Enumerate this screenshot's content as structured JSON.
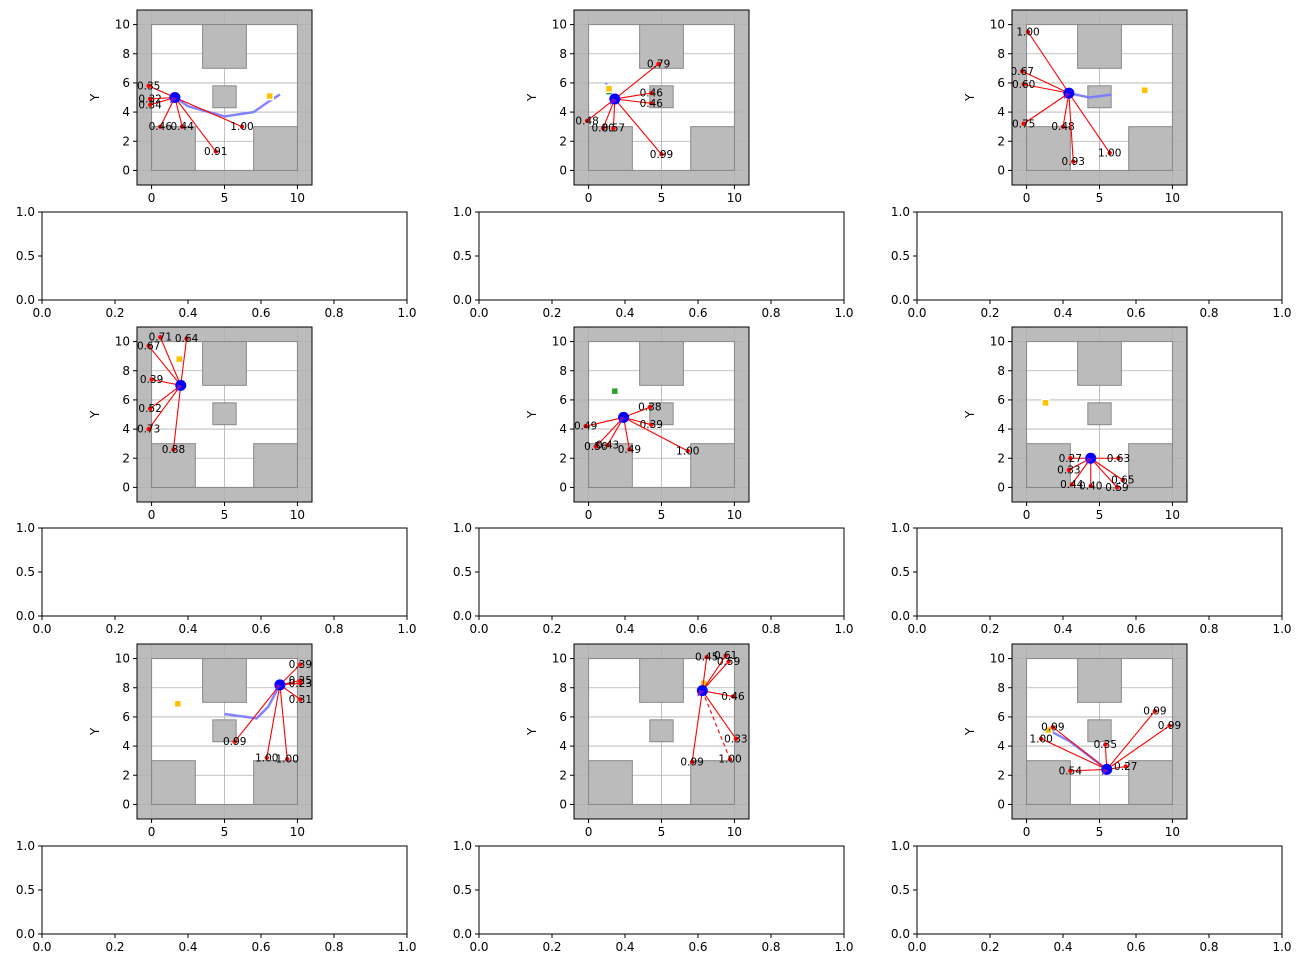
{
  "chart_data": [
    {
      "type": "scatter",
      "panel": "map",
      "ylabel": "Y",
      "xlim": [
        -1,
        11
      ],
      "ylim": [
        -1,
        11
      ],
      "xticks": [
        "0",
        "5",
        "10"
      ],
      "yticks": [
        "0",
        "2",
        "4",
        "6",
        "8",
        "10"
      ],
      "robot": [
        1.6,
        5.0
      ],
      "goal": [
        8.1,
        5.1
      ],
      "start": null,
      "path": [
        [
          8.8,
          5.2
        ],
        [
          8.0,
          4.7
        ],
        [
          7.0,
          4.0
        ],
        [
          5.0,
          3.7
        ],
        [
          2.5,
          4.4
        ],
        [
          1.6,
          5.0
        ]
      ],
      "rays": [
        [
          -0.2,
          5.8,
          "0.35"
        ],
        [
          -0.1,
          4.9,
          "0.32"
        ],
        [
          -0.1,
          4.5,
          "0.34"
        ],
        [
          0.6,
          3.0,
          "0.46"
        ],
        [
          2.1,
          3.0,
          "0.44"
        ],
        [
          4.4,
          1.3,
          "0.91"
        ],
        [
          6.2,
          3.0,
          "1.00"
        ]
      ],
      "dashed": []
    },
    {
      "type": "scatter",
      "panel": "map",
      "ylabel": "Y",
      "xlim": [
        -1,
        11
      ],
      "ylim": [
        -1,
        11
      ],
      "xticks": [
        "0",
        "5",
        "10"
      ],
      "yticks": [
        "0",
        "2",
        "4",
        "6",
        "8",
        "10"
      ],
      "robot": [
        1.8,
        4.9
      ],
      "goal": [
        1.4,
        5.6
      ],
      "start": [
        1.4,
        5.4
      ],
      "path": [
        [
          1.8,
          4.9
        ],
        [
          1.3,
          5.4
        ],
        [
          1.2,
          6.0
        ]
      ],
      "rays": [
        [
          -0.1,
          3.4,
          "0.48"
        ],
        [
          1.0,
          2.9,
          "0.80"
        ],
        [
          1.7,
          2.9,
          "0.57"
        ],
        [
          4.3,
          4.6,
          "0.46"
        ],
        [
          4.3,
          5.3,
          "0.46"
        ],
        [
          5.0,
          1.1,
          "0.99"
        ],
        [
          4.8,
          7.3,
          "0.79"
        ]
      ],
      "dashed": []
    },
    {
      "type": "scatter",
      "panel": "map",
      "ylabel": "Y",
      "xlim": [
        -1,
        11
      ],
      "ylim": [
        -1,
        11
      ],
      "xticks": [
        "0",
        "5",
        "10"
      ],
      "yticks": [
        "0",
        "2",
        "4",
        "6",
        "8",
        "10"
      ],
      "robot": [
        2.9,
        5.3
      ],
      "goal": [
        8.1,
        5.5
      ],
      "start": null,
      "path": [
        [
          2.9,
          5.3
        ],
        [
          4.3,
          5.0
        ],
        [
          5.8,
          5.2
        ]
      ],
      "rays": [
        [
          0.1,
          9.5,
          "1.00"
        ],
        [
          -0.3,
          6.8,
          "0.67"
        ],
        [
          -0.2,
          5.9,
          "0.60"
        ],
        [
          -0.2,
          3.2,
          "0.75"
        ],
        [
          2.5,
          3.0,
          "0.48"
        ],
        [
          3.2,
          0.6,
          "0.93"
        ],
        [
          5.7,
          1.2,
          "1.00"
        ]
      ],
      "dashed": []
    },
    {
      "type": "scatter",
      "panel": "map",
      "ylabel": "Y",
      "xlim": [
        -1,
        11
      ],
      "ylim": [
        -1,
        11
      ],
      "xticks": [
        "0",
        "5",
        "10"
      ],
      "yticks": [
        "0",
        "2",
        "4",
        "6",
        "8",
        "10"
      ],
      "robot": [
        2.0,
        7.0
      ],
      "goal": [
        1.9,
        8.8
      ],
      "start": null,
      "path": [],
      "rays": [
        [
          -0.2,
          9.7,
          "0.67"
        ],
        [
          0.6,
          10.3,
          "0.71"
        ],
        [
          2.4,
          10.2,
          "0.64"
        ],
        [
          0.0,
          7.4,
          "0.39"
        ],
        [
          -0.1,
          5.4,
          "0.52"
        ],
        [
          -0.2,
          4.0,
          "0.73"
        ],
        [
          1.5,
          2.6,
          "0.88"
        ]
      ],
      "dashed": []
    },
    {
      "type": "scatter",
      "panel": "map",
      "ylabel": "Y",
      "xlim": [
        -1,
        11
      ],
      "ylim": [
        -1,
        11
      ],
      "xticks": [
        "0",
        "5",
        "10"
      ],
      "yticks": [
        "0",
        "2",
        "4",
        "6",
        "8",
        "10"
      ],
      "robot": [
        2.4,
        4.8
      ],
      "goal": null,
      "start": [
        1.8,
        6.6
      ],
      "path": [],
      "rays": [
        [
          -0.2,
          4.2,
          "0.49"
        ],
        [
          0.5,
          2.8,
          "0.56"
        ],
        [
          1.3,
          2.9,
          "0.43"
        ],
        [
          2.8,
          2.6,
          "0.49"
        ],
        [
          4.3,
          4.3,
          "0.39"
        ],
        [
          4.2,
          5.5,
          "0.38"
        ],
        [
          6.8,
          2.5,
          "1.00"
        ]
      ],
      "dashed": []
    },
    {
      "type": "scatter",
      "panel": "map",
      "ylabel": "Y",
      "xlim": [
        -1,
        11
      ],
      "ylim": [
        -1,
        11
      ],
      "xticks": [
        "0",
        "5",
        "10"
      ],
      "yticks": [
        "0",
        "2",
        "4",
        "6",
        "8",
        "10"
      ],
      "robot": [
        4.4,
        2.0
      ],
      "goal": [
        1.3,
        5.8
      ],
      "start": null,
      "path": [],
      "rays": [
        [
          3.0,
          2.0,
          "0.27"
        ],
        [
          2.9,
          1.2,
          "0.33"
        ],
        [
          3.1,
          0.2,
          "0.44"
        ],
        [
          4.4,
          0.1,
          "0.40"
        ],
        [
          6.2,
          0.0,
          "0.59"
        ],
        [
          6.6,
          0.5,
          "0.65"
        ],
        [
          6.3,
          2.0,
          "0.63"
        ]
      ],
      "dashed": []
    },
    {
      "type": "scatter",
      "panel": "map",
      "ylabel": "Y",
      "xlim": [
        -1,
        11
      ],
      "ylim": [
        -1,
        11
      ],
      "xticks": [
        "0",
        "5",
        "10"
      ],
      "yticks": [
        "0",
        "2",
        "4",
        "6",
        "8",
        "10"
      ],
      "robot": [
        8.8,
        8.2
      ],
      "goal": [
        1.8,
        6.9
      ],
      "start": null,
      "path": [
        [
          5.0,
          6.2
        ],
        [
          7.2,
          5.9
        ],
        [
          8.0,
          6.7
        ],
        [
          8.8,
          8.2
        ]
      ],
      "rays": [
        [
          10.2,
          9.6,
          "0.39"
        ],
        [
          10.2,
          8.5,
          "0.25"
        ],
        [
          10.2,
          8.3,
          "0.23"
        ],
        [
          10.2,
          7.2,
          "0.31"
        ],
        [
          5.7,
          4.3,
          "0.99"
        ],
        [
          7.9,
          3.2,
          "1.00"
        ],
        [
          9.3,
          3.1,
          "1.00"
        ]
      ],
      "dashed": []
    },
    {
      "type": "scatter",
      "panel": "map",
      "ylabel": "Y",
      "xlim": [
        -1,
        11
      ],
      "ylim": [
        -1,
        11
      ],
      "xticks": [
        "0",
        "5",
        "10"
      ],
      "yticks": [
        "0",
        "2",
        "4",
        "6",
        "8",
        "10"
      ],
      "robot": [
        7.8,
        7.8
      ],
      "goal": [
        7.9,
        8.3
      ],
      "start": null,
      "path": [],
      "rays": [
        [
          8.1,
          10.1,
          "0.45"
        ],
        [
          9.4,
          10.2,
          "0.61"
        ],
        [
          9.6,
          9.8,
          "0.59"
        ],
        [
          9.9,
          7.4,
          "0.46"
        ],
        [
          10.1,
          4.5,
          "0.33"
        ],
        [
          7.1,
          2.9,
          "0.99"
        ]
      ],
      "dashed": [
        [
          9.7,
          3.1,
          "1.00"
        ]
      ]
    },
    {
      "type": "scatter",
      "panel": "map",
      "ylabel": "Y",
      "xlim": [
        -1,
        11
      ],
      "ylim": [
        -1,
        11
      ],
      "xticks": [
        "0",
        "5",
        "10"
      ],
      "yticks": [
        "0",
        "2",
        "4",
        "6",
        "8",
        "10"
      ],
      "robot": [
        5.5,
        2.4
      ],
      "goal": [
        1.5,
        5.1
      ],
      "start": null,
      "path": [
        [
          5.5,
          2.4
        ],
        [
          3.0,
          4.3
        ],
        [
          1.5,
          5.1
        ]
      ],
      "rays": [
        [
          1.8,
          5.3,
          "0.99"
        ],
        [
          1.0,
          4.5,
          "1.00"
        ],
        [
          3.0,
          2.3,
          "0.54"
        ],
        [
          5.4,
          4.1,
          "0.35"
        ],
        [
          6.8,
          2.6,
          "0.27"
        ],
        [
          8.8,
          6.4,
          "0.99"
        ],
        [
          9.8,
          5.4,
          "0.99"
        ]
      ],
      "dashed": []
    },
    {
      "type": "scatter",
      "panel": "empty",
      "xlim": [
        0,
        1
      ],
      "ylim": [
        0,
        1
      ],
      "xticks": [
        "0.0",
        "0.2",
        "0.4",
        "0.6",
        "0.8",
        "1.0"
      ],
      "yticks": [
        "0.0",
        "0.5",
        "1.0"
      ]
    }
  ],
  "map": {
    "walls": [
      [
        -1,
        -1,
        11,
        0
      ],
      [
        -1,
        10,
        11,
        11
      ],
      [
        -1,
        -1,
        0,
        11
      ],
      [
        10,
        -1,
        11,
        11
      ]
    ],
    "obstacles": [
      [
        3.5,
        7,
        6.5,
        10
      ],
      [
        4.2,
        4.3,
        5.8,
        5.8
      ],
      [
        0,
        0,
        3,
        3
      ],
      [
        7,
        0,
        10,
        3
      ]
    ]
  },
  "colors": {
    "robot": "#0000ff",
    "ray": "#ff0000",
    "path": "#7777ff",
    "goal": "#ffc000",
    "start": "#2ca02c",
    "obstacle": "#bbbbbb",
    "obstacle_edge": "#888888",
    "grid": "#b0b0b0"
  }
}
